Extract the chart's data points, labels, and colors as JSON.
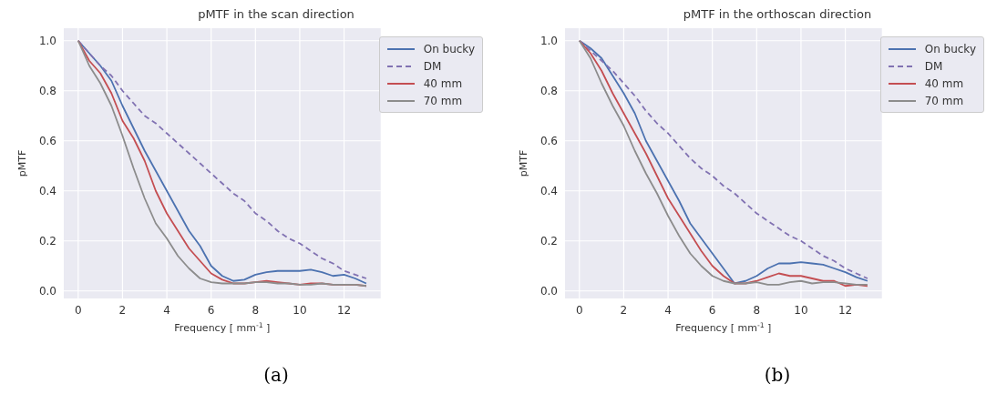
{
  "chart_data": [
    {
      "type": "line",
      "title": "pMTF in the scan direction",
      "xlabel": "Frequency [ mm$^{-1}$ ]",
      "ylabel": "pMTF",
      "annotations": [
        "(a)"
      ],
      "x": [
        0,
        0.5,
        1,
        1.5,
        2,
        2.5,
        3,
        3.5,
        4,
        4.5,
        5,
        5.5,
        6,
        6.5,
        7,
        7.5,
        8,
        8.5,
        9,
        9.5,
        10,
        10.5,
        11,
        11.5,
        12,
        12.5,
        13
      ],
      "xlim": [
        -0.65,
        13.65
      ],
      "xticks": [
        0,
        2,
        4,
        6,
        8,
        10,
        12
      ],
      "ylim": [
        -0.03,
        1.05
      ],
      "yticks": [
        {
          "value": 0,
          "label": "0.0"
        },
        {
          "value": 0.2,
          "label": "0.2"
        },
        {
          "value": 0.4,
          "label": "0.4"
        },
        {
          "value": 0.6,
          "label": "0.6"
        },
        {
          "value": 0.8,
          "label": "0.8"
        },
        {
          "value": 1,
          "label": "1.0"
        }
      ],
      "grid": true,
      "legend": "top right",
      "marker": "none",
      "series": [
        {
          "name": "On bucky",
          "color": "#4c72b0",
          "line_style": "solid",
          "values": [
            1,
            0.95,
            0.9,
            0.84,
            0.74,
            0.65,
            0.56,
            0.48,
            0.4,
            0.32,
            0.24,
            0.18,
            0.1,
            0.06,
            0.04,
            0.045,
            0.065,
            0.075,
            0.08,
            0.08,
            0.08,
            0.085,
            0.075,
            0.06,
            0.065,
            0.05,
            0.03
          ]
        },
        {
          "name": "DM",
          "color": "#8172b2",
          "line_style": "dashed",
          "values": [
            1,
            0.95,
            0.9,
            0.86,
            0.8,
            0.75,
            0.7,
            0.67,
            0.63,
            0.59,
            0.55,
            0.51,
            0.47,
            0.43,
            0.39,
            0.36,
            0.31,
            0.28,
            0.24,
            0.21,
            0.19,
            0.16,
            0.13,
            0.11,
            0.08,
            0.065,
            0.05
          ]
        },
        {
          "name": "40 mm",
          "color": "#c44e52",
          "line_style": "solid",
          "values": [
            1,
            0.92,
            0.87,
            0.79,
            0.68,
            0.61,
            0.52,
            0.4,
            0.31,
            0.24,
            0.17,
            0.12,
            0.07,
            0.045,
            0.03,
            0.03,
            0.035,
            0.04,
            0.035,
            0.03,
            0.025,
            0.03,
            0.03,
            0.025,
            0.025,
            0.025,
            0.02
          ]
        },
        {
          "name": "70 mm",
          "color": "#8c8c8c",
          "line_style": "solid",
          "values": [
            1,
            0.9,
            0.83,
            0.74,
            0.62,
            0.49,
            0.37,
            0.27,
            0.21,
            0.14,
            0.09,
            0.05,
            0.035,
            0.03,
            0.03,
            0.03,
            0.035,
            0.035,
            0.03,
            0.03,
            0.025,
            0.025,
            0.03,
            0.025,
            0.025,
            0.025,
            0.02
          ]
        }
      ]
    },
    {
      "type": "line",
      "title": "pMTF in the orthoscan direction",
      "xlabel": "Frequency [ mm$^{-1}$ ]",
      "ylabel": "pMTF",
      "annotations": [
        "(b)"
      ],
      "x": [
        0,
        0.5,
        1,
        1.5,
        2,
        2.5,
        3,
        3.5,
        4,
        4.5,
        5,
        5.5,
        6,
        6.5,
        7,
        7.5,
        8,
        8.5,
        9,
        9.5,
        10,
        10.5,
        11,
        11.5,
        12,
        12.5,
        13
      ],
      "xlim": [
        -0.65,
        13.65
      ],
      "xticks": [
        0,
        2,
        4,
        6,
        8,
        10,
        12
      ],
      "ylim": [
        -0.03,
        1.05
      ],
      "yticks": [
        {
          "value": 0,
          "label": "0.0"
        },
        {
          "value": 0.2,
          "label": "0.2"
        },
        {
          "value": 0.4,
          "label": "0.4"
        },
        {
          "value": 0.6,
          "label": "0.6"
        },
        {
          "value": 0.8,
          "label": "0.8"
        },
        {
          "value": 1,
          "label": "1.0"
        }
      ],
      "grid": true,
      "legend": "top right",
      "marker": "none",
      "series": [
        {
          "name": "On bucky",
          "color": "#4c72b0",
          "line_style": "solid",
          "values": [
            1,
            0.97,
            0.93,
            0.86,
            0.79,
            0.71,
            0.6,
            0.52,
            0.44,
            0.36,
            0.27,
            0.21,
            0.15,
            0.09,
            0.03,
            0.04,
            0.06,
            0.09,
            0.11,
            0.11,
            0.115,
            0.11,
            0.105,
            0.09,
            0.075,
            0.055,
            0.04
          ]
        },
        {
          "name": "DM",
          "color": "#8172b2",
          "line_style": "dashed",
          "values": [
            1,
            0.96,
            0.92,
            0.88,
            0.83,
            0.78,
            0.72,
            0.67,
            0.63,
            0.58,
            0.53,
            0.49,
            0.46,
            0.42,
            0.39,
            0.35,
            0.31,
            0.28,
            0.25,
            0.22,
            0.2,
            0.17,
            0.14,
            0.12,
            0.09,
            0.07,
            0.05
          ]
        },
        {
          "name": "40 mm",
          "color": "#c44e52",
          "line_style": "solid",
          "values": [
            1,
            0.95,
            0.88,
            0.79,
            0.71,
            0.63,
            0.55,
            0.46,
            0.37,
            0.3,
            0.23,
            0.16,
            0.1,
            0.06,
            0.03,
            0.03,
            0.04,
            0.055,
            0.07,
            0.06,
            0.06,
            0.05,
            0.04,
            0.04,
            0.02,
            0.025,
            0.02
          ]
        },
        {
          "name": "70 mm",
          "color": "#8c8c8c",
          "line_style": "solid",
          "values": [
            1,
            0.93,
            0.83,
            0.74,
            0.66,
            0.56,
            0.47,
            0.39,
            0.3,
            0.22,
            0.15,
            0.1,
            0.06,
            0.04,
            0.03,
            0.03,
            0.035,
            0.025,
            0.025,
            0.035,
            0.04,
            0.03,
            0.035,
            0.035,
            0.03,
            0.025,
            0.025
          ]
        }
      ]
    }
  ]
}
